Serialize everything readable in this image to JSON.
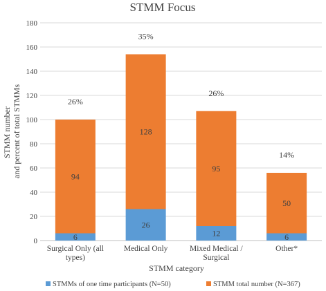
{
  "chart_data": {
    "type": "bar",
    "stacked": true,
    "title": "STMM Focus",
    "xlabel": "STMM category",
    "ylabel_lines": [
      "STMM number",
      "and percent of total STMMs"
    ],
    "ylim": [
      0,
      180
    ],
    "yticks": [
      0,
      20,
      40,
      60,
      80,
      100,
      120,
      140,
      160,
      180
    ],
    "categories": [
      [
        "Surgical Only (all",
        "types)"
      ],
      [
        "Medical Only"
      ],
      [
        "Mixed Medical /",
        "Surgical"
      ],
      [
        "Other*"
      ]
    ],
    "series": [
      {
        "name": "STMMs of one time participants (N=50)",
        "color": "#5b9bd5",
        "values": [
          6,
          26,
          12,
          6
        ]
      },
      {
        "name": "STMM total number (N=367)",
        "color": "#ed7d31",
        "values": [
          94,
          128,
          95,
          50
        ]
      }
    ],
    "percent_labels": [
      "26%",
      "35%",
      "26%",
      "14%"
    ],
    "grid": true,
    "legend": "bottom"
  }
}
